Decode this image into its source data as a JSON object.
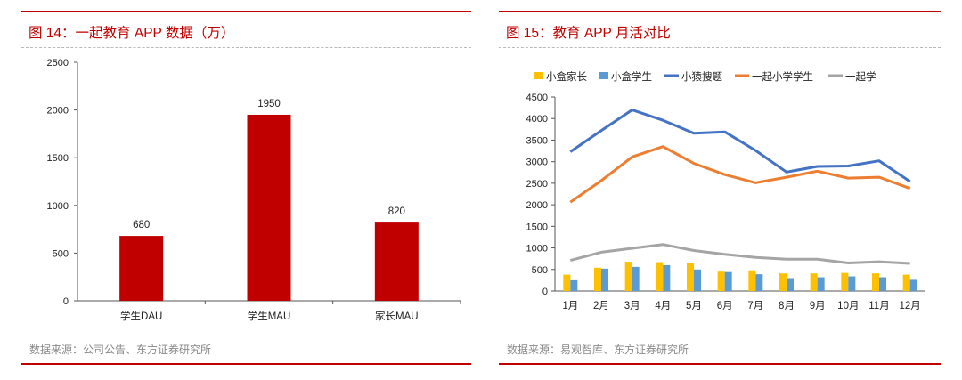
{
  "chart_data": [
    {
      "type": "bar",
      "title": "图 14：一起教育 APP 数据（万）",
      "categories": [
        "学生DAU",
        "学生MAU",
        "家长MAU"
      ],
      "values": [
        680,
        1950,
        820
      ],
      "ylim": [
        0,
        2500
      ],
      "yticks": [
        0,
        500,
        1000,
        1500,
        2000,
        2500
      ],
      "color": "#c00000",
      "source": "数据来源：公司公告、东方证券研究所"
    },
    {
      "type": "line+bar",
      "title": "图 15：教育 APP 月活对比",
      "categories": [
        "1月",
        "2月",
        "3月",
        "4月",
        "5月",
        "6月",
        "7月",
        "8月",
        "9月",
        "10月",
        "11月",
        "12月"
      ],
      "ylim": [
        0,
        4500
      ],
      "yticks": [
        0,
        500,
        1000,
        1500,
        2000,
        2500,
        3000,
        3500,
        4000,
        4500
      ],
      "legend_position": "top",
      "series": [
        {
          "name": "小盒家长",
          "type": "bar",
          "color": "#ffc000",
          "values": [
            380,
            540,
            680,
            670,
            640,
            450,
            480,
            410,
            410,
            420,
            410,
            380
          ]
        },
        {
          "name": "小盒学生",
          "type": "bar",
          "color": "#5b9bd5",
          "values": [
            250,
            520,
            560,
            600,
            500,
            440,
            390,
            300,
            320,
            340,
            320,
            260
          ]
        },
        {
          "name": "小猿搜题",
          "type": "line",
          "color": "#4472c4",
          "values": [
            3230,
            3720,
            4200,
            3960,
            3660,
            3690,
            3260,
            2760,
            2890,
            2900,
            3020,
            2540
          ]
        },
        {
          "name": "一起小学学生",
          "type": "line",
          "color": "#ed7d31",
          "values": [
            2060,
            2560,
            3110,
            3350,
            2960,
            2700,
            2510,
            2640,
            2780,
            2620,
            2640,
            2380
          ]
        },
        {
          "name": "一起学",
          "type": "line",
          "color": "#a5a5a5",
          "values": [
            710,
            900,
            990,
            1080,
            940,
            850,
            780,
            740,
            740,
            650,
            680,
            640
          ]
        }
      ],
      "source": "数据来源：易观智库、东方证券研究所"
    }
  ]
}
